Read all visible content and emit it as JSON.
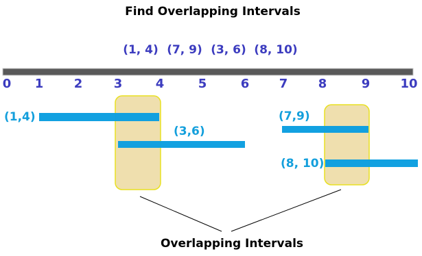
{
  "title": "Find Overlapping Intervals",
  "input_intervals": [
    "(1, 4)",
    "(7, 9)",
    "(3, 6)",
    "(8, 10)"
  ],
  "axis": {
    "labels": [
      0,
      1,
      2,
      3,
      4,
      5,
      6,
      7,
      8,
      9,
      10
    ]
  },
  "intervals": [
    {
      "label": "(1,4)"
    },
    {
      "label": "(3,6)"
    },
    {
      "label": "(7,9)"
    },
    {
      "label": "(8, 10)"
    }
  ],
  "caption": "Overlapping Intervals"
}
